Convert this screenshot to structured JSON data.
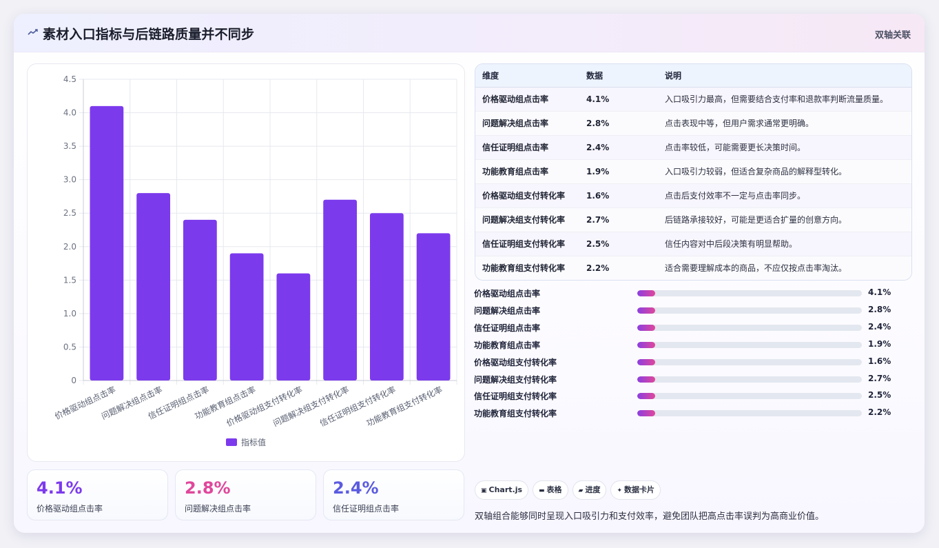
{
  "header": {
    "title": "素材入口指标与后链路质量并不同步",
    "tag": "双轴关联"
  },
  "chart_data": {
    "type": "bar",
    "categories": [
      "价格驱动组点击率",
      "问题解决组点击率",
      "信任证明组点击率",
      "功能教育组点击率",
      "价格驱动组支付转化率",
      "问题解决组支付转化率",
      "信任证明组支付转化率",
      "功能教育组支付转化率"
    ],
    "series": [
      {
        "name": "指标值",
        "values": [
          4.1,
          2.8,
          2.4,
          1.9,
          1.6,
          2.7,
          2.5,
          2.2
        ],
        "color": "#7c3aed"
      }
    ],
    "ylim": [
      0,
      4.5
    ],
    "yticks": [
      "0",
      "0.5",
      "1.0",
      "1.5",
      "2.0",
      "2.5",
      "3.0",
      "3.5",
      "4.0",
      "4.5"
    ],
    "grid": true,
    "legend": "bottom"
  },
  "stats": [
    {
      "value": "4.1%",
      "label": "价格驱动组点击率",
      "color": "#7c3aed"
    },
    {
      "value": "2.8%",
      "label": "问题解决组点击率",
      "color": "#e0479b"
    },
    {
      "value": "2.4%",
      "label": "信任证明组点击率",
      "color": "#5b5be0"
    }
  ],
  "table": {
    "headers": [
      "维度",
      "数据",
      "说明"
    ],
    "rows": [
      [
        "价格驱动组点击率",
        "4.1%",
        "入口吸引力最高，但需要结合支付率和退款率判断流量质量。"
      ],
      [
        "问题解决组点击率",
        "2.8%",
        "点击表现中等，但用户需求通常更明确。"
      ],
      [
        "信任证明组点击率",
        "2.4%",
        "点击率较低，可能需要更长决策时间。"
      ],
      [
        "功能教育组点击率",
        "1.9%",
        "入口吸引力较弱，但适合复杂商品的解释型转化。"
      ],
      [
        "价格驱动组支付转化率",
        "1.6%",
        "点击后支付效率不一定与点击率同步。"
      ],
      [
        "问题解决组支付转化率",
        "2.7%",
        "后链路承接较好，可能是更适合扩量的创意方向。"
      ],
      [
        "信任证明组支付转化率",
        "2.5%",
        "信任内容对中后段决策有明显帮助。"
      ],
      [
        "功能教育组支付转化率",
        "2.2%",
        "适合需要理解成本的商品，不应仅按点击率淘汰。"
      ]
    ]
  },
  "progress": [
    {
      "label": "价格驱动组点击率",
      "value": "4.1%",
      "fill": 0.08
    },
    {
      "label": "问题解决组点击率",
      "value": "2.8%",
      "fill": 0.08
    },
    {
      "label": "信任证明组点击率",
      "value": "2.4%",
      "fill": 0.08
    },
    {
      "label": "功能教育组点击率",
      "value": "1.9%",
      "fill": 0.08
    },
    {
      "label": "价格驱动组支付转化率",
      "value": "1.6%",
      "fill": 0.08
    },
    {
      "label": "问题解决组支付转化率",
      "value": "2.7%",
      "fill": 0.08
    },
    {
      "label": "信任证明组支付转化率",
      "value": "2.5%",
      "fill": 0.08
    },
    {
      "label": "功能教育组支付转化率",
      "value": "2.2%",
      "fill": 0.08
    }
  ],
  "chips": [
    {
      "icon": "chart-icon",
      "label": "Chart.js"
    },
    {
      "icon": "table-icon",
      "label": "表格"
    },
    {
      "icon": "progress-icon",
      "label": "进度"
    },
    {
      "icon": "sparkle-icon",
      "label": "数据卡片"
    }
  ],
  "footnote": "双轴组合能够同时呈现入口吸引力和支付效率，避免团队把高点击率误判为高商业价值。"
}
